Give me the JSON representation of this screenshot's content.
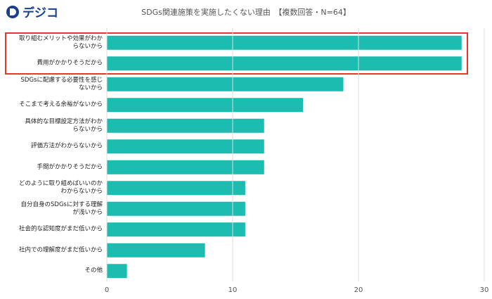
{
  "logo": "デジコ",
  "chart_data": {
    "type": "bar",
    "orientation": "horizontal",
    "title": "SDGs関連施策を実施したくない理由　【複数回答・N=64】",
    "categories": [
      "取り組むメリットや効果がわか\nらないから",
      "費用がかかりそうだから",
      "SDGsに配慮する必要性を感じ\nないから",
      "そこまで考える余裕がないから",
      "具体的な目標設定方法がわか\nらないから",
      "評価方法がわからないから",
      "手間がかかりそうだから",
      "どのように取り組めばいいのか\nわからないから",
      "自分自身のSDGsに対する理解\nが浅いから",
      "社会的な認知度がまだ低いから",
      "社内での理解度がまだ低いから",
      "その他"
    ],
    "values": [
      28.2,
      28.2,
      18.8,
      15.6,
      12.5,
      12.5,
      12.5,
      11,
      11,
      11,
      7.8,
      1.6
    ],
    "color": "#1cbcb0",
    "xlim": [
      0,
      30
    ],
    "xticks": [
      0,
      10,
      20,
      30
    ],
    "grid": true
  }
}
